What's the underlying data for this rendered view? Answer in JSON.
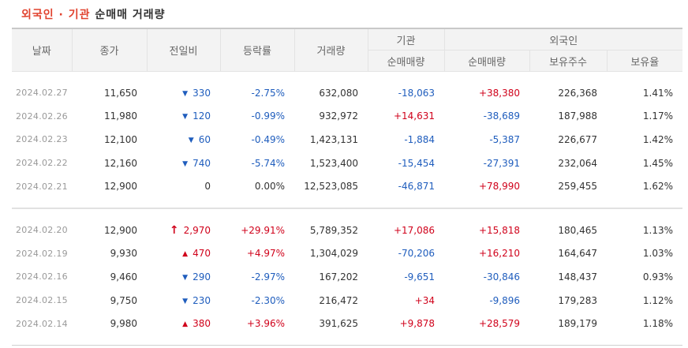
{
  "title": {
    "accent": "외국인 · 기관",
    "rest": "순매매 거래량"
  },
  "headers": {
    "date": "날짜",
    "close": "종가",
    "change": "전일비",
    "rate": "등락률",
    "volume": "거래량",
    "inst_group": "기관",
    "foreign_group": "외국인",
    "inst_net": "순매매량",
    "foreign_net": "순매매량",
    "foreign_shares": "보유주수",
    "foreign_ratio": "보유율"
  },
  "colors": {
    "up": "#d0021b",
    "down": "#1f5dbd",
    "accent": "#e1432f"
  },
  "rows": [
    {
      "date": "2024.02.27",
      "close": "11,650",
      "dir": "down",
      "change": "330",
      "rate": "-2.75%",
      "volume": "632,080",
      "inst": "-18,063",
      "foreign": "+38,380",
      "shares": "226,368",
      "ratio": "1.41%"
    },
    {
      "date": "2024.02.26",
      "close": "11,980",
      "dir": "down",
      "change": "120",
      "rate": "-0.99%",
      "volume": "932,972",
      "inst": "+14,631",
      "foreign": "-38,689",
      "shares": "187,988",
      "ratio": "1.17%"
    },
    {
      "date": "2024.02.23",
      "close": "12,100",
      "dir": "down",
      "change": "60",
      "rate": "-0.49%",
      "volume": "1,423,131",
      "inst": "-1,884",
      "foreign": "-5,387",
      "shares": "226,677",
      "ratio": "1.42%"
    },
    {
      "date": "2024.02.22",
      "close": "12,160",
      "dir": "down",
      "change": "740",
      "rate": "-5.74%",
      "volume": "1,523,400",
      "inst": "-15,454",
      "foreign": "-27,391",
      "shares": "232,064",
      "ratio": "1.45%"
    },
    {
      "date": "2024.02.21",
      "close": "12,900",
      "dir": "flat",
      "change": "0",
      "rate": "0.00%",
      "volume": "12,523,085",
      "inst": "-46,871",
      "foreign": "+78,990",
      "shares": "259,455",
      "ratio": "1.62%"
    },
    {
      "date": "2024.02.20",
      "close": "12,900",
      "dir": "upper",
      "change": "2,970",
      "rate": "+29.91%",
      "volume": "5,789,352",
      "inst": "+17,086",
      "foreign": "+15,818",
      "shares": "180,465",
      "ratio": "1.13%"
    },
    {
      "date": "2024.02.19",
      "close": "9,930",
      "dir": "up",
      "change": "470",
      "rate": "+4.97%",
      "volume": "1,304,029",
      "inst": "-70,206",
      "foreign": "+16,210",
      "shares": "164,647",
      "ratio": "1.03%"
    },
    {
      "date": "2024.02.16",
      "close": "9,460",
      "dir": "down",
      "change": "290",
      "rate": "-2.97%",
      "volume": "167,202",
      "inst": "-9,651",
      "foreign": "-30,846",
      "shares": "148,437",
      "ratio": "0.93%"
    },
    {
      "date": "2024.02.15",
      "close": "9,750",
      "dir": "down",
      "change": "230",
      "rate": "-2.30%",
      "volume": "216,472",
      "inst": "+34",
      "foreign": "-9,896",
      "shares": "179,283",
      "ratio": "1.12%"
    },
    {
      "date": "2024.02.14",
      "close": "9,980",
      "dir": "up",
      "change": "380",
      "rate": "+3.96%",
      "volume": "391,625",
      "inst": "+9,878",
      "foreign": "+28,579",
      "shares": "189,179",
      "ratio": "1.18%"
    }
  ]
}
